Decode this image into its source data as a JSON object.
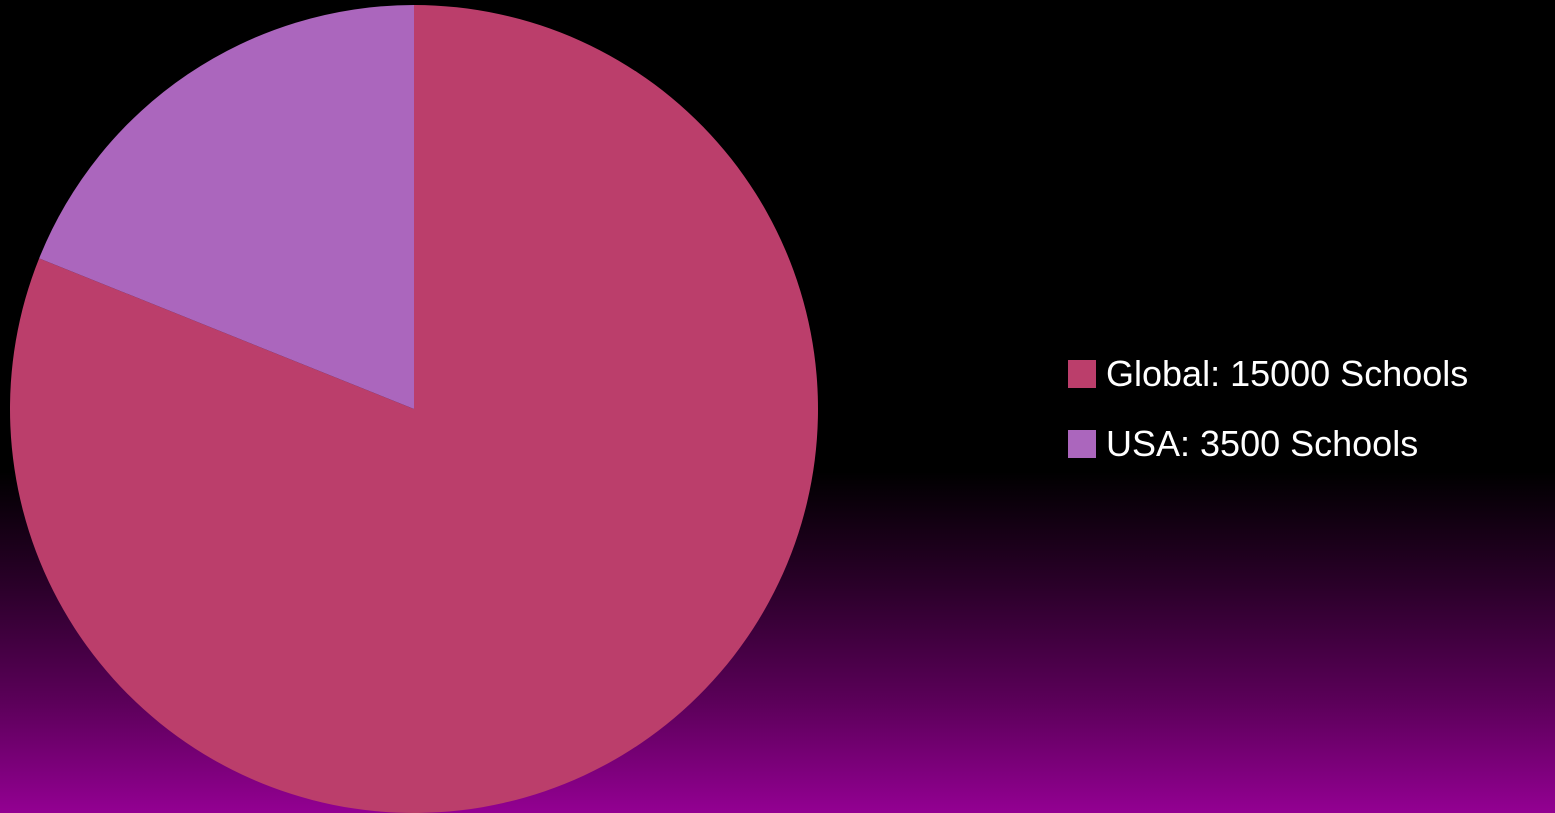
{
  "chart_data": {
    "type": "pie",
    "categories": [
      "Global: 15000 Schools",
      "USA: 3500 Schools"
    ],
    "values": [
      15000,
      3500
    ],
    "colors": [
      "#bb3e6b",
      "#ab66bd"
    ],
    "title": "",
    "legend_position": "right"
  },
  "theme": {
    "background_gradient": [
      "#000000",
      "#930092"
    ]
  }
}
